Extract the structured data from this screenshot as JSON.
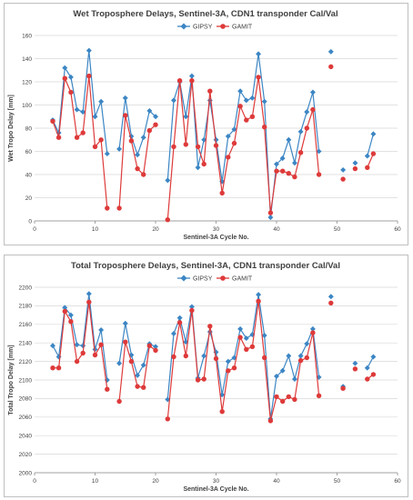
{
  "colors": {
    "gipsy": "#3c86c4",
    "gamit": "#de3a3a",
    "grid": "#d9d9d9",
    "axis": "#8c8c8c"
  },
  "chart_data": [
    {
      "type": "line",
      "title": "Wet Troposphere Delays, Sentinel-3A, CDN1 transponder Cal/Val",
      "xlabel": "Sentinel-3A Cycle No.",
      "ylabel": "Wet Tropo Delay [mm]",
      "xlim": [
        0,
        60
      ],
      "ylim": [
        0,
        160
      ],
      "xticks": [
        "0",
        "10",
        "20",
        "30",
        "40",
        "50",
        "60"
      ],
      "yticks": [
        "0",
        "20",
        "40",
        "60",
        "80",
        "100",
        "120",
        "140",
        "160"
      ],
      "grid": true,
      "legend": "top-center",
      "series": [
        {
          "name": "GIPSY",
          "color": "#3c86c4",
          "segments": [
            [
              [
                3,
                87
              ],
              [
                4,
                76
              ],
              [
                5,
                132
              ],
              [
                6,
                124
              ],
              [
                7,
                96
              ],
              [
                8,
                94
              ],
              [
                9,
                147
              ],
              [
                10,
                90
              ],
              [
                11,
                103
              ],
              [
                12,
                58
              ]
            ],
            [
              [
                14,
                62
              ],
              [
                15,
                106
              ],
              [
                16,
                73
              ],
              [
                17,
                57
              ],
              [
                18,
                72
              ],
              [
                19,
                95
              ],
              [
                20,
                90
              ]
            ],
            [
              [
                22,
                35
              ],
              [
                23,
                104
              ],
              [
                24,
                120
              ],
              [
                25,
                90
              ],
              [
                26,
                125
              ],
              [
                27,
                46
              ],
              [
                28,
                70
              ],
              [
                29,
                104
              ],
              [
                30,
                70
              ],
              [
                31,
                34
              ],
              [
                32,
                73
              ],
              [
                33,
                79
              ],
              [
                34,
                112
              ],
              [
                35,
                104
              ],
              [
                36,
                106
              ],
              [
                37,
                144
              ],
              [
                38,
                103
              ],
              [
                39,
                3
              ],
              [
                40,
                49
              ],
              [
                41,
                54
              ],
              [
                42,
                70
              ],
              [
                43,
                50
              ],
              [
                44,
                77
              ],
              [
                45,
                94
              ],
              [
                46,
                111
              ],
              [
                47,
                60
              ]
            ],
            [
              [
                49,
                146
              ]
            ],
            [
              [
                51,
                44
              ]
            ],
            [
              [
                53,
                50
              ]
            ],
            [
              [
                55,
                56
              ],
              [
                56,
                75
              ]
            ]
          ]
        },
        {
          "name": "GAMIT",
          "color": "#de3a3a",
          "segments": [
            [
              [
                3,
                86
              ],
              [
                4,
                72
              ],
              [
                5,
                123
              ],
              [
                6,
                111
              ],
              [
                7,
                72
              ],
              [
                8,
                76
              ],
              [
                9,
                125
              ],
              [
                10,
                64
              ],
              [
                11,
                70
              ],
              [
                12,
                11
              ]
            ],
            [
              [
                14,
                11
              ],
              [
                15,
                91
              ],
              [
                16,
                69
              ],
              [
                17,
                45
              ],
              [
                18,
                40
              ],
              [
                19,
                78
              ],
              [
                20,
                83
              ]
            ],
            [
              [
                22,
                1
              ],
              [
                23,
                64
              ],
              [
                24,
                121
              ],
              [
                25,
                66
              ],
              [
                26,
                121
              ],
              [
                27,
                64
              ],
              [
                28,
                49
              ],
              [
                29,
                112
              ],
              [
                30,
                65
              ],
              [
                31,
                24
              ],
              [
                32,
                55
              ],
              [
                33,
                67
              ],
              [
                34,
                99
              ],
              [
                35,
                87
              ],
              [
                36,
                90
              ],
              [
                37,
                124
              ],
              [
                38,
                81
              ],
              [
                39,
                7
              ],
              [
                40,
                43
              ],
              [
                41,
                43
              ],
              [
                42,
                41
              ],
              [
                43,
                38
              ],
              [
                44,
                59
              ],
              [
                45,
                80
              ],
              [
                46,
                96
              ],
              [
                47,
                40
              ]
            ],
            [
              [
                49,
                133
              ]
            ],
            [
              [
                51,
                36
              ]
            ],
            [
              [
                53,
                45
              ]
            ],
            [
              [
                55,
                46
              ],
              [
                56,
                58
              ]
            ]
          ]
        }
      ]
    },
    {
      "type": "line",
      "title": "Total Troposphere Delays, Sentinel-3A, CDN1 transponder Cal/Val",
      "xlabel": "Sentinel-3A Cycle No.",
      "ylabel": "Total Tropo Delay [mm]",
      "xlim": [
        0,
        60
      ],
      "ylim": [
        2000,
        2200
      ],
      "xticks": [
        "0",
        "10",
        "20",
        "30",
        "40",
        "50",
        "60"
      ],
      "yticks": [
        "2000",
        "2020",
        "2040",
        "2060",
        "2080",
        "2100",
        "2120",
        "2140",
        "2160",
        "2180",
        "2200"
      ],
      "grid": true,
      "legend": "top-center",
      "series": [
        {
          "name": "GIPSY",
          "color": "#3c86c4",
          "segments": [
            [
              [
                3,
                2137
              ],
              [
                4,
                2125
              ],
              [
                5,
                2178
              ],
              [
                6,
                2170
              ],
              [
                7,
                2138
              ],
              [
                8,
                2137
              ],
              [
                9,
                2193
              ],
              [
                10,
                2133
              ],
              [
                11,
                2154
              ],
              [
                12,
                2100
              ]
            ],
            [
              [
                14,
                2118
              ],
              [
                15,
                2161
              ],
              [
                16,
                2127
              ],
              [
                17,
                2105
              ],
              [
                18,
                2116
              ],
              [
                19,
                2139
              ],
              [
                20,
                2136
              ]
            ],
            [
              [
                22,
                2079
              ],
              [
                23,
                2150
              ],
              [
                24,
                2167
              ],
              [
                25,
                2141
              ],
              [
                26,
                2179
              ],
              [
                27,
                2102
              ],
              [
                28,
                2126
              ],
              [
                29,
                2152
              ],
              [
                30,
                2130
              ],
              [
                31,
                2084
              ],
              [
                32,
                2120
              ],
              [
                33,
                2124
              ],
              [
                34,
                2155
              ],
              [
                35,
                2145
              ],
              [
                36,
                2149
              ],
              [
                37,
                2192
              ],
              [
                38,
                2148
              ],
              [
                39,
                2058
              ],
              [
                40,
                2104
              ],
              [
                41,
                2110
              ],
              [
                42,
                2126
              ],
              [
                43,
                2101
              ],
              [
                44,
                2126
              ],
              [
                45,
                2139
              ],
              [
                46,
                2155
              ],
              [
                47,
                2103
              ]
            ],
            [
              [
                49,
                2190
              ]
            ],
            [
              [
                51,
                2093
              ]
            ],
            [
              [
                53,
                2118
              ]
            ],
            [
              [
                55,
                2113
              ],
              [
                56,
                2125
              ]
            ]
          ]
        },
        {
          "name": "GAMIT",
          "color": "#de3a3a",
          "segments": [
            [
              [
                3,
                2113
              ],
              [
                4,
                2113
              ],
              [
                5,
                2174
              ],
              [
                6,
                2163
              ],
              [
                7,
                2120
              ],
              [
                8,
                2129
              ],
              [
                9,
                2184
              ],
              [
                10,
                2127
              ],
              [
                11,
                2138
              ],
              [
                12,
                2090
              ]
            ],
            [
              [
                14,
                2077
              ],
              [
                15,
                2141
              ],
              [
                16,
                2120
              ],
              [
                17,
                2093
              ],
              [
                18,
                2092
              ],
              [
                19,
                2137
              ],
              [
                20,
                2132
              ]
            ],
            [
              [
                22,
                2058
              ],
              [
                23,
                2125
              ],
              [
                24,
                2162
              ],
              [
                25,
                2126
              ],
              [
                26,
                2175
              ],
              [
                27,
                2100
              ],
              [
                28,
                2101
              ],
              [
                29,
                2158
              ],
              [
                30,
                2123
              ],
              [
                31,
                2066
              ],
              [
                32,
                2110
              ],
              [
                33,
                2113
              ],
              [
                34,
                2146
              ],
              [
                35,
                2133
              ],
              [
                36,
                2136
              ],
              [
                37,
                2185
              ],
              [
                38,
                2124
              ],
              [
                39,
                2056
              ],
              [
                40,
                2082
              ],
              [
                41,
                2077
              ],
              [
                42,
                2082
              ],
              [
                43,
                2079
              ],
              [
                44,
                2121
              ],
              [
                45,
                2124
              ],
              [
                46,
                2151
              ],
              [
                47,
                2083
              ]
            ],
            [
              [
                49,
                2183
              ]
            ],
            [
              [
                51,
                2091
              ]
            ],
            [
              [
                53,
                2112
              ]
            ],
            [
              [
                55,
                2101
              ],
              [
                56,
                2106
              ]
            ]
          ]
        }
      ]
    }
  ]
}
